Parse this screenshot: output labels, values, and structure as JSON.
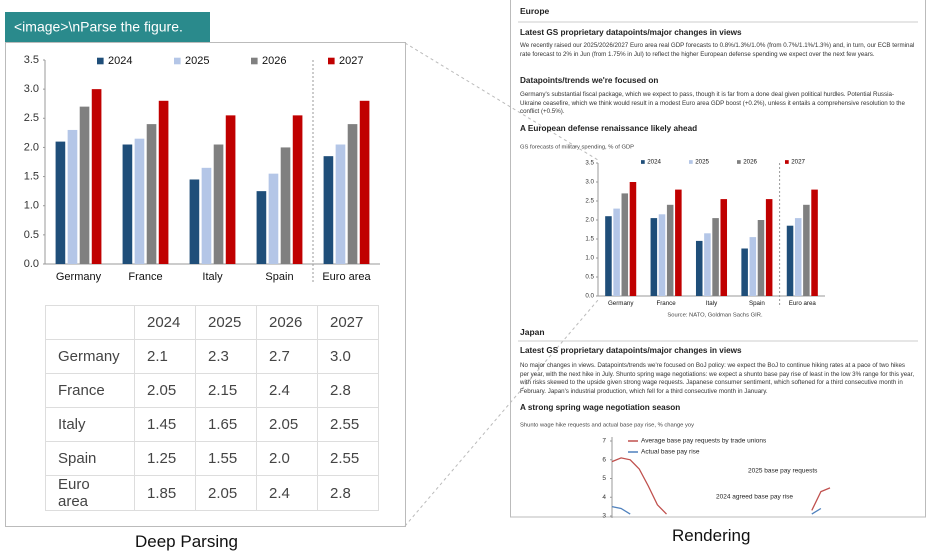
{
  "prompt": "<image>\\nParse the figure.",
  "figure": {
    "type": "bar",
    "title": "GS forecasts of military spending, % of GDP",
    "source": "Source: NATO, Goldman Sachs GIR.",
    "categories": [
      "Germany",
      "France",
      "Italy",
      "Spain",
      "Euro area"
    ],
    "series": [
      {
        "name": "2024",
        "color": "#1f4e79",
        "values": [
          2.1,
          2.05,
          1.45,
          1.25,
          1.85
        ]
      },
      {
        "name": "2025",
        "color": "#b4c6e7",
        "values": [
          2.3,
          2.15,
          1.65,
          1.55,
          2.05
        ]
      },
      {
        "name": "2026",
        "color": "#808080",
        "values": [
          2.7,
          2.4,
          2.05,
          2.0,
          2.4
        ]
      },
      {
        "name": "2027",
        "color": "#c00000",
        "values": [
          3,
          2.8,
          2.55,
          2.55,
          2.8
        ]
      }
    ],
    "ylim": [
      0,
      3.5
    ],
    "yticks": [
      {
        "value": 0,
        "label": "0.0"
      },
      0.5,
      {
        "value": 1,
        "label": "1.0"
      },
      1.5,
      {
        "value": 2,
        "label": "2.0"
      },
      2.5,
      {
        "value": 3,
        "label": "3.0"
      },
      3.5
    ]
  },
  "table": {
    "header": [
      "2024",
      "2025",
      "2026",
      "2027"
    ],
    "rows": [
      [
        "Germany",
        "2.1",
        "2.3",
        "2.7",
        "3.0"
      ],
      [
        "France",
        "2.05",
        "2.15",
        "2.4",
        "2.8"
      ],
      [
        "Italy",
        "1.45",
        "1.65",
        "2.05",
        "2.55"
      ],
      [
        "Spain",
        "1.25",
        "1.55",
        "2.0",
        "2.55"
      ],
      [
        "Euro area",
        "1.85",
        "2.05",
        "2.4",
        "2.8"
      ]
    ]
  },
  "captions": {
    "left": "Deep Parsing",
    "right": "Rendering"
  },
  "document": {
    "europe": "Europe",
    "europe_views_title": "Latest GS proprietary datapoints/major changes in views",
    "europe_views": "We recently raised our 2025/2026/2027 Euro area real GDP forecasts to 0.8%/1.3%/1.0% (from 0.7%/1.1%/1.3%) and, in turn, our ECB terminal rate forecast to 2% in Jun (from 1.75% in Jul) to reflect the higher European defense spending we expect over the next few years.",
    "europe_trends_title": "Datapoints/trends we're focused on",
    "europe_trends": "Germany's substantial fiscal package, which we expect to pass, though it is far from a done deal given political hurdles. Potential Russia-Ukraine ceasefire, which we think would result in a modest Euro area GDP boost (+0.2%), unless it entails a comprehensive resolution to the conflict (+0.5%).",
    "defense_title": "A European defense renaissance likely ahead",
    "japan": "Japan",
    "japan_views_title": "Latest GS proprietary datapoints/major changes in views",
    "japan_views": "No major changes in views. Datapoints/trends we're focused on BoJ policy: we expect the BoJ to continue hiking rates at a pace of two hikes per year, with the next hike in July. Shunto spring wage negotiations: we expect a shunto base pay rise of least in the low 3% range for this year, with risks skewed to the upside given strong wage requests. Japanese consumer sentiment, which softened for a third consecutive month in February. Japan's industrial production, which fell for a third consecutive month in January.",
    "wage_title": "A strong spring wage negotiation season"
  },
  "wage_chart": {
    "type": "line",
    "title": "Shunto wage hike requests and actual base pay rise, % change yoy",
    "series": [
      {
        "name": "Average base pay requests by trade unions",
        "color": "#c0504d",
        "values": [
          5.9,
          6.1,
          6.0,
          5.5,
          4.6,
          3.6,
          3.1,
          null,
          null,
          null,
          null,
          null,
          null,
          null,
          null,
          null,
          null,
          null,
          null,
          null,
          null,
          null,
          3.3,
          4.3,
          4.5
        ]
      },
      {
        "name": "Actual base pay rise",
        "color": "#4f81bd",
        "values": [
          3.5,
          3.4,
          3.1,
          null,
          null,
          null,
          null,
          null,
          null,
          null,
          null,
          null,
          null,
          null,
          null,
          null,
          null,
          null,
          null,
          null,
          null,
          null,
          3.1,
          3.4,
          null
        ]
      }
    ],
    "ylim": [
      3,
      7
    ],
    "yticks": [
      3,
      4,
      5,
      6,
      7
    ],
    "annotations": [
      "2025 base pay requests",
      "2024 agreed base pay rise"
    ]
  }
}
